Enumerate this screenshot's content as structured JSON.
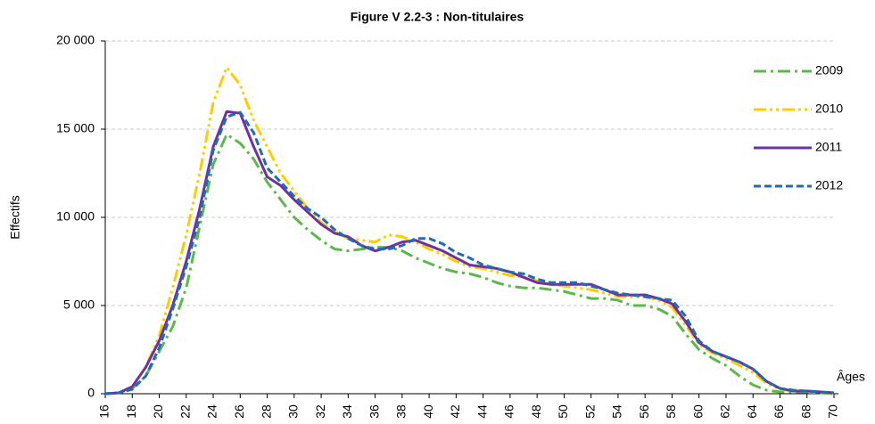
{
  "chart_data": {
    "type": "line",
    "title": "Figure V 2.2-3 : Non-titulaires",
    "x_label": "Âges",
    "y_label": "Effectifs",
    "x": [
      16,
      17,
      18,
      19,
      20,
      21,
      22,
      23,
      24,
      25,
      26,
      27,
      28,
      29,
      30,
      31,
      32,
      33,
      34,
      35,
      36,
      37,
      38,
      39,
      40,
      41,
      42,
      43,
      44,
      45,
      46,
      47,
      48,
      49,
      50,
      51,
      52,
      53,
      54,
      55,
      56,
      57,
      58,
      59,
      60,
      61,
      62,
      63,
      64,
      65,
      66,
      67,
      68,
      69,
      70
    ],
    "xlim": [
      16,
      70
    ],
    "xticks": [
      16,
      18,
      20,
      22,
      24,
      26,
      28,
      30,
      32,
      34,
      36,
      38,
      40,
      42,
      44,
      46,
      48,
      50,
      52,
      54,
      56,
      58,
      60,
      62,
      64,
      66,
      68,
      70
    ],
    "ylim": [
      0,
      20000
    ],
    "yticks": [
      0,
      {
        "value": 5000,
        "label": "5 000"
      },
      {
        "value": 10000,
        "label": "10 000"
      },
      {
        "value": 15000,
        "label": "15 000"
      },
      {
        "value": 20000,
        "label": "20 000"
      }
    ],
    "grid": true,
    "legend": "right",
    "series": [
      {
        "name": "2009",
        "color": "#5bb84a",
        "dash": "dashdot",
        "values": [
          0,
          50,
          300,
          1000,
          2400,
          3800,
          6000,
          9500,
          13000,
          14700,
          14200,
          13300,
          12000,
          11000,
          10000,
          9300,
          8700,
          8200,
          8100,
          8200,
          8300,
          8300,
          8100,
          7700,
          7400,
          7100,
          6900,
          6800,
          6600,
          6300,
          6100,
          6000,
          6000,
          5900,
          5800,
          5600,
          5400,
          5400,
          5300,
          5000,
          5000,
          4800,
          4400,
          3400,
          2500,
          2000,
          1600,
          1000,
          500,
          200,
          100,
          100,
          100,
          50,
          0
        ]
      },
      {
        "name": "2010",
        "color": "#ffcc00",
        "dash": "dashdotdot",
        "values": [
          0,
          50,
          400,
          1500,
          3300,
          6000,
          9000,
          12500,
          16500,
          18500,
          17500,
          15500,
          14000,
          12500,
          11500,
          10500,
          9700,
          9200,
          8800,
          8700,
          8600,
          9000,
          8900,
          8600,
          8200,
          7900,
          7500,
          7200,
          7100,
          6900,
          6700,
          6600,
          6400,
          6200,
          6100,
          6000,
          5900,
          5700,
          5500,
          5500,
          5500,
          5300,
          4900,
          3900,
          2800,
          2300,
          2000,
          1600,
          1200,
          600,
          250,
          150,
          150,
          100,
          50
        ]
      },
      {
        "name": "2011",
        "color": "#7030a0",
        "dash": "solid",
        "values": [
          0,
          50,
          400,
          1500,
          3000,
          5000,
          7500,
          10500,
          14000,
          16000,
          15900,
          14000,
          12300,
          11800,
          11000,
          10300,
          9600,
          9100,
          8900,
          8400,
          8100,
          8300,
          8600,
          8700,
          8400,
          8100,
          7700,
          7300,
          7200,
          7100,
          6900,
          6600,
          6300,
          6200,
          6200,
          6200,
          6200,
          5900,
          5600,
          5600,
          5600,
          5400,
          5100,
          4100,
          2900,
          2400,
          2100,
          1800,
          1400,
          700,
          300,
          150,
          150,
          100,
          50
        ]
      },
      {
        "name": "2012",
        "color": "#1f6bb5",
        "dash": "dash",
        "values": [
          0,
          50,
          250,
          1000,
          2600,
          4800,
          7200,
          10000,
          13800,
          15700,
          15950,
          14800,
          12800,
          12000,
          11200,
          10500,
          10000,
          9300,
          8800,
          8400,
          8200,
          8200,
          8400,
          8800,
          8800,
          8500,
          8000,
          7700,
          7300,
          7100,
          6900,
          6800,
          6500,
          6300,
          6300,
          6300,
          6100,
          5900,
          5700,
          5600,
          5500,
          5400,
          5300,
          4400,
          3000,
          2400,
          2100,
          1800,
          1400,
          700,
          300,
          200,
          150,
          100,
          50
        ]
      }
    ]
  }
}
